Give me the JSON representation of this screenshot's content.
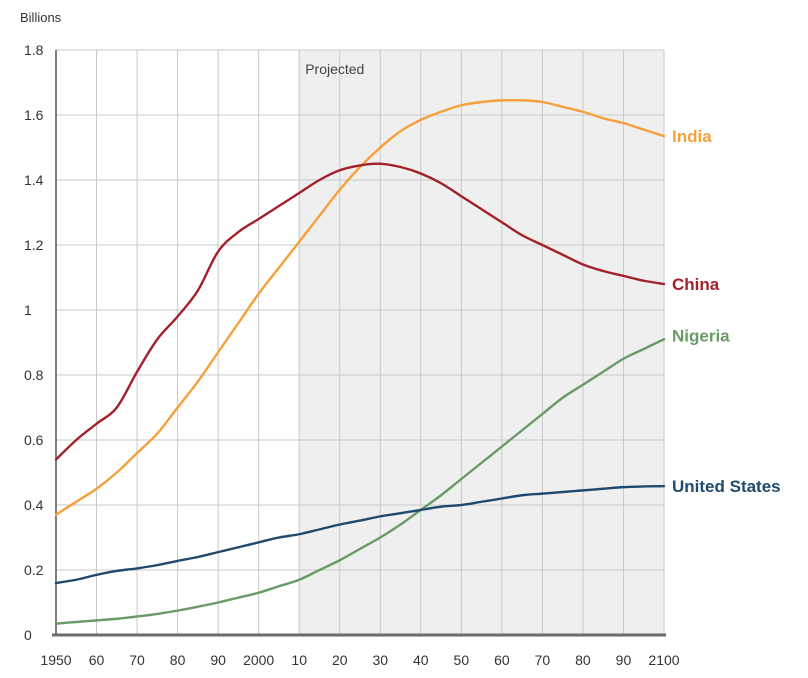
{
  "chart_data": {
    "type": "line",
    "title": "",
    "xlabel": "",
    "ylabel": "",
    "y_unit": "Billions",
    "xlim": [
      1950,
      2100
    ],
    "ylim": [
      0,
      1.8
    ],
    "grid": true,
    "projected_region": {
      "label": "Projected",
      "x_start": 2010,
      "x_end": 2100,
      "color": "#efefef"
    },
    "x_ticks": [
      {
        "value": 1950,
        "label": "1950"
      },
      {
        "value": 1960,
        "label": "60"
      },
      {
        "value": 1970,
        "label": "70"
      },
      {
        "value": 1980,
        "label": "80"
      },
      {
        "value": 1990,
        "label": "90"
      },
      {
        "value": 2000,
        "label": "2000"
      },
      {
        "value": 2010,
        "label": "10"
      },
      {
        "value": 2020,
        "label": "20"
      },
      {
        "value": 2030,
        "label": "30"
      },
      {
        "value": 2040,
        "label": "40"
      },
      {
        "value": 2050,
        "label": "50"
      },
      {
        "value": 2060,
        "label": "60"
      },
      {
        "value": 2070,
        "label": "70"
      },
      {
        "value": 2080,
        "label": "80"
      },
      {
        "value": 2090,
        "label": "90"
      },
      {
        "value": 2100,
        "label": "2100"
      }
    ],
    "y_ticks": [
      {
        "value": 0,
        "label": "0"
      },
      {
        "value": 0.2,
        "label": "0.2"
      },
      {
        "value": 0.4,
        "label": "0.4"
      },
      {
        "value": 0.6,
        "label": "0.6"
      },
      {
        "value": 0.8,
        "label": "0.8"
      },
      {
        "value": 1,
        "label": "1"
      },
      {
        "value": 1.2,
        "label": "1.2"
      },
      {
        "value": 1.4,
        "label": "1.4"
      },
      {
        "value": 1.6,
        "label": "1.6"
      },
      {
        "value": 1.8,
        "label": "1.8"
      }
    ],
    "x": [
      1950,
      1955,
      1960,
      1965,
      1970,
      1975,
      1980,
      1985,
      1990,
      1995,
      2000,
      2005,
      2010,
      2015,
      2020,
      2025,
      2030,
      2035,
      2040,
      2045,
      2050,
      2055,
      2060,
      2065,
      2070,
      2075,
      2080,
      2085,
      2090,
      2095,
      2100
    ],
    "series": [
      {
        "name": "India",
        "color": "#f7a03b",
        "values": [
          0.37,
          0.41,
          0.45,
          0.5,
          0.56,
          0.62,
          0.7,
          0.78,
          0.87,
          0.96,
          1.05,
          1.13,
          1.21,
          1.29,
          1.37,
          1.44,
          1.5,
          1.55,
          1.585,
          1.61,
          1.63,
          1.64,
          1.645,
          1.645,
          1.64,
          1.625,
          1.61,
          1.59,
          1.575,
          1.555,
          1.535
        ]
      },
      {
        "name": "China",
        "color": "#a3212b",
        "values": [
          0.54,
          0.6,
          0.65,
          0.7,
          0.81,
          0.91,
          0.98,
          1.06,
          1.18,
          1.24,
          1.28,
          1.32,
          1.36,
          1.4,
          1.43,
          1.445,
          1.45,
          1.44,
          1.42,
          1.39,
          1.35,
          1.31,
          1.27,
          1.23,
          1.2,
          1.17,
          1.14,
          1.12,
          1.105,
          1.09,
          1.08
        ]
      },
      {
        "name": "Nigeria",
        "color": "#6a9a67",
        "values": [
          0.035,
          0.04,
          0.045,
          0.05,
          0.057,
          0.065,
          0.075,
          0.087,
          0.1,
          0.115,
          0.13,
          0.15,
          0.17,
          0.2,
          0.23,
          0.265,
          0.3,
          0.34,
          0.385,
          0.43,
          0.48,
          0.53,
          0.58,
          0.63,
          0.68,
          0.73,
          0.77,
          0.81,
          0.85,
          0.88,
          0.91
        ]
      },
      {
        "name": "United States",
        "color": "#1f4a6e",
        "values": [
          0.16,
          0.17,
          0.185,
          0.197,
          0.205,
          0.215,
          0.228,
          0.24,
          0.255,
          0.27,
          0.285,
          0.3,
          0.31,
          0.325,
          0.34,
          0.352,
          0.365,
          0.375,
          0.385,
          0.395,
          0.4,
          0.41,
          0.42,
          0.43,
          0.435,
          0.44,
          0.445,
          0.45,
          0.455,
          0.457,
          0.458
        ]
      }
    ]
  }
}
